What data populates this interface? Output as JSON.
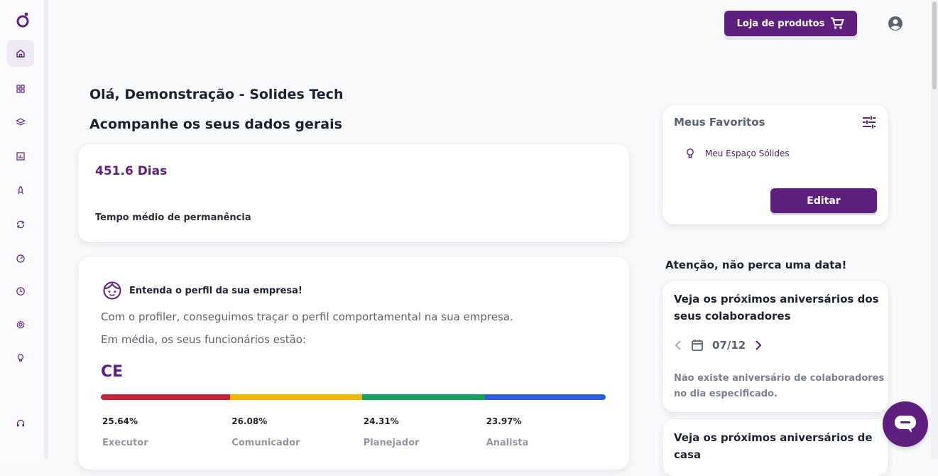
{
  "header": {
    "store_button_label": "Loja de produtos"
  },
  "main": {
    "greeting": "Olá, Demonstração - Solides Tech",
    "subtitle": "Acompanhe os seus dados gerais",
    "stat": {
      "value": "451.6 Dias",
      "label": "Tempo médio de permanência"
    },
    "profile": {
      "title": "Entenda o perfil da sua empresa!",
      "text_1": "Com o profiler, conseguimos traçar o perfil comportamental na sua empresa.",
      "text_2": "Em média, os seus funcionários estão:",
      "code": "CE",
      "segments": [
        {
          "name": "Executor",
          "percent_label": "25.64%",
          "value": 25.64,
          "color": "#c8233a"
        },
        {
          "name": "Comunicador",
          "percent_label": "26.08%",
          "value": 26.08,
          "color": "#f2b705"
        },
        {
          "name": "Planejador",
          "percent_label": "24.31%",
          "value": 24.31,
          "color": "#13a062"
        },
        {
          "name": "Analista",
          "percent_label": "23.97%",
          "value": 23.97,
          "color": "#2b5ee0"
        }
      ]
    }
  },
  "favorites": {
    "title": "Meus Favoritos",
    "items": [
      {
        "label": "Meu Espaço Sólides",
        "icon": "lightbulb-icon"
      }
    ],
    "edit_label": "Editar"
  },
  "attention": "Atenção, não perca uma data!",
  "birthdays": {
    "title": "Veja os próximos aniversários dos seus colaboradores",
    "date": "07/12",
    "empty": "Não existe aniversário de colaboradores no dia especificado."
  },
  "house_anniversaries": {
    "title": "Veja os próximos aniversários de casa"
  },
  "colors": {
    "brand": "#5e1f7f"
  }
}
